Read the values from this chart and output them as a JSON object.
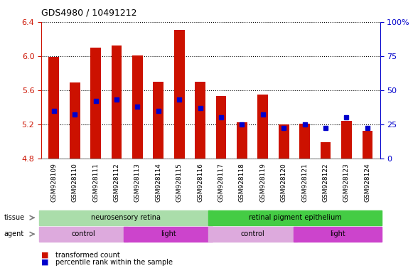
{
  "title": "GDS4980 / 10491212",
  "samples": [
    "GSM928109",
    "GSM928110",
    "GSM928111",
    "GSM928112",
    "GSM928113",
    "GSM928114",
    "GSM928115",
    "GSM928116",
    "GSM928117",
    "GSM928118",
    "GSM928119",
    "GSM928120",
    "GSM928121",
    "GSM928122",
    "GSM928123",
    "GSM928124"
  ],
  "transformed_count": [
    5.99,
    5.69,
    6.1,
    6.12,
    6.01,
    5.7,
    6.31,
    5.7,
    5.53,
    5.22,
    5.55,
    5.2,
    5.21,
    4.99,
    5.24,
    5.12
  ],
  "percentile_rank": [
    35,
    32,
    42,
    43,
    38,
    35,
    43,
    37,
    30,
    25,
    32,
    22,
    25,
    22,
    30,
    22
  ],
  "ymin": 4.8,
  "ymax": 6.4,
  "yticks": [
    4.8,
    5.2,
    5.6,
    6.0,
    6.4
  ],
  "y2min": 0,
  "y2max": 100,
  "y2ticks": [
    0,
    25,
    50,
    75,
    100
  ],
  "bar_color": "#cc1100",
  "dot_color": "#0000cc",
  "bg_color": "#ffffff",
  "plot_bg": "#ffffff",
  "tissue_groups": [
    {
      "label": "neurosensory retina",
      "start": 0,
      "end": 8,
      "color": "#aaddaa"
    },
    {
      "label": "retinal pigment epithelium",
      "start": 8,
      "end": 16,
      "color": "#44cc44"
    }
  ],
  "agent_groups": [
    {
      "label": "control",
      "start": 0,
      "end": 4,
      "color": "#ddaadd"
    },
    {
      "label": "light",
      "start": 4,
      "end": 8,
      "color": "#cc44cc"
    },
    {
      "label": "control",
      "start": 8,
      "end": 12,
      "color": "#ddaadd"
    },
    {
      "label": "light",
      "start": 12,
      "end": 16,
      "color": "#cc44cc"
    }
  ],
  "legend_items": [
    {
      "label": "transformed count",
      "color": "#cc1100",
      "marker": "s"
    },
    {
      "label": "percentile rank within the sample",
      "color": "#0000cc",
      "marker": "s"
    }
  ],
  "grid_color": "#000000",
  "tick_color_left": "#cc1100",
  "tick_color_right": "#0000cc"
}
